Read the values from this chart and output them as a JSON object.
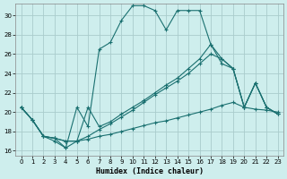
{
  "bg_color": "#ceeeed",
  "grid_color": "#aacccc",
  "line_color": "#1a7070",
  "xlabel": "Humidex (Indice chaleur)",
  "xlim": [
    -0.5,
    23.5
  ],
  "ylim": [
    15.5,
    31.2
  ],
  "xticks": [
    0,
    1,
    2,
    3,
    4,
    5,
    6,
    7,
    8,
    9,
    10,
    11,
    12,
    13,
    14,
    15,
    16,
    17,
    18,
    19,
    20,
    21,
    22,
    23
  ],
  "yticks": [
    16,
    18,
    20,
    22,
    24,
    26,
    28,
    30
  ],
  "series": [
    {
      "x": [
        0,
        1,
        2,
        3,
        4,
        5,
        6,
        7,
        8,
        9,
        10,
        11,
        12,
        13,
        14,
        15,
        16,
        17,
        18,
        19,
        20,
        21,
        22,
        23
      ],
      "y": [
        20.5,
        19.2,
        17.5,
        17.0,
        16.3,
        20.5,
        18.5,
        26.5,
        27.2,
        29.5,
        31.0,
        31.0,
        30.5,
        28.5,
        30.5,
        30.5,
        30.5,
        27.0,
        25.0,
        24.5,
        20.5,
        23.0,
        20.5,
        19.8
      ]
    },
    {
      "x": [
        0,
        1,
        2,
        3,
        4,
        5,
        6,
        7,
        8,
        9,
        10,
        11,
        12,
        13,
        14,
        15,
        16,
        17,
        18,
        19,
        20,
        21,
        22,
        23
      ],
      "y": [
        20.5,
        19.2,
        17.5,
        17.3,
        17.0,
        17.0,
        17.2,
        17.5,
        17.7,
        18.0,
        18.3,
        18.6,
        18.9,
        19.1,
        19.4,
        19.7,
        20.0,
        20.3,
        20.7,
        21.0,
        20.5,
        20.3,
        20.2,
        20.0
      ]
    },
    {
      "x": [
        0,
        1,
        2,
        3,
        4,
        5,
        6,
        7,
        8,
        9,
        10,
        11,
        12,
        13,
        14,
        15,
        16,
        17,
        18,
        19,
        20,
        21,
        22,
        23
      ],
      "y": [
        20.5,
        19.2,
        17.5,
        17.3,
        17.0,
        17.0,
        17.5,
        18.2,
        18.8,
        19.5,
        20.2,
        21.0,
        21.8,
        22.5,
        23.2,
        24.0,
        25.0,
        26.0,
        25.5,
        24.5,
        20.5,
        23.0,
        20.5,
        19.8
      ]
    },
    {
      "x": [
        0,
        1,
        2,
        3,
        4,
        5,
        6,
        7,
        8,
        9,
        10,
        11,
        12,
        13,
        14,
        15,
        16,
        17,
        18,
        19,
        20,
        21,
        22,
        23
      ],
      "y": [
        20.5,
        19.2,
        17.5,
        17.3,
        16.3,
        17.0,
        20.5,
        18.5,
        19.0,
        19.8,
        20.5,
        21.2,
        22.0,
        22.8,
        23.5,
        24.5,
        25.5,
        27.0,
        25.5,
        24.5,
        20.5,
        23.0,
        20.5,
        19.8
      ]
    }
  ]
}
